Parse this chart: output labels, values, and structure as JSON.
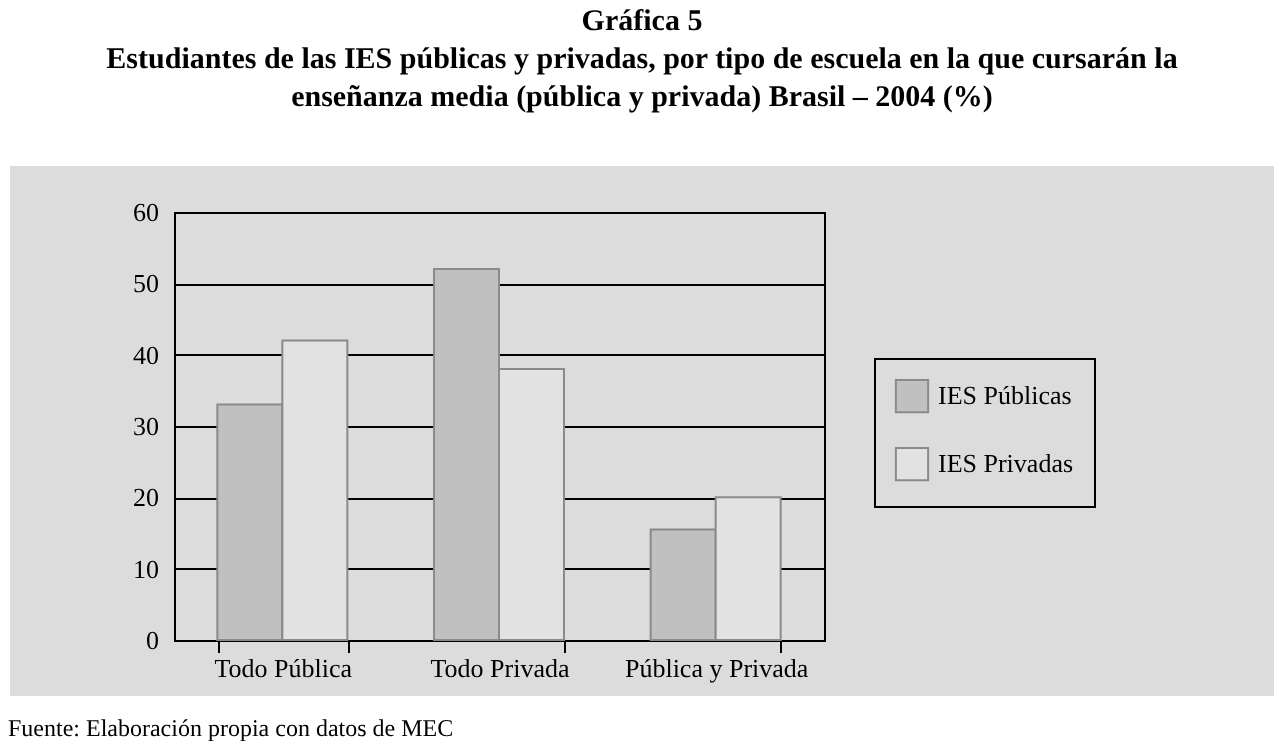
{
  "chart_data": {
    "type": "bar",
    "title": "Gráfica 5",
    "subtitle": "Estudiantes de las IES públicas y privadas, por tipo de escuela en la que cursarán la enseñanza media (pública y privada) Brasil – 2004 (%)",
    "categories": [
      "Todo Pública",
      "Todo Privada",
      "Pública y Privada"
    ],
    "series": [
      {
        "name": "IES Públicas",
        "color": "#c0c0c0",
        "values": [
          33,
          52,
          15.5
        ]
      },
      {
        "name": "IES Privadas",
        "color": "#e2e2e2",
        "values": [
          42,
          38,
          20
        ]
      }
    ],
    "ylim": [
      0,
      60
    ],
    "yticks": [
      0,
      10,
      20,
      30,
      40,
      50,
      60
    ],
    "grid": "y",
    "legend": "right",
    "annotations": [
      "Fuente: Elaboración propia con datos de MEC"
    ]
  }
}
